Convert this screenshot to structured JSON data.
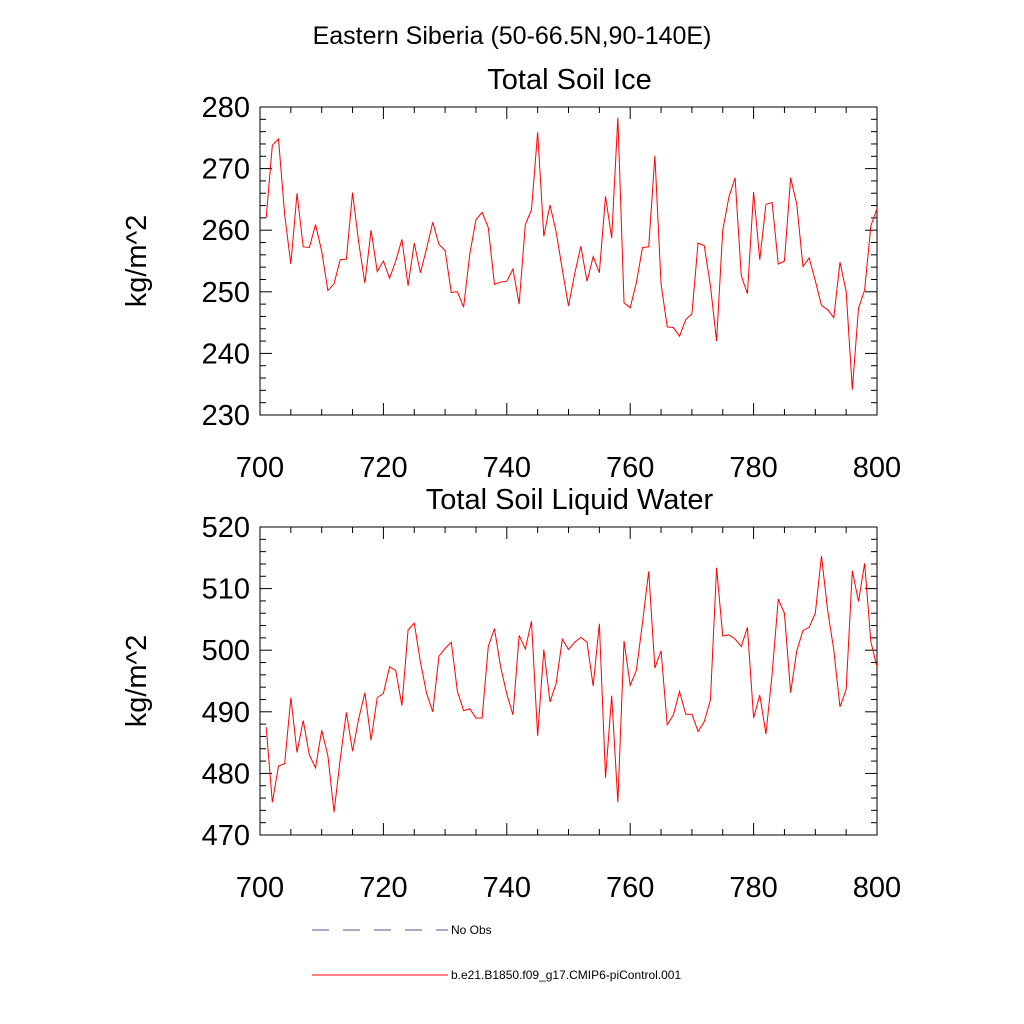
{
  "figure_title": "Eastern Siberia (50-66.5N,90-140E)",
  "legend": {
    "obs_label": "No Obs",
    "model_label": "b.e21.B1850.f09_g17.CMIP6-piControl.001",
    "obs_color": "#4a5a8c",
    "model_color": "#ff0000"
  },
  "chart_data": [
    {
      "type": "line",
      "title": "Total Soil Ice",
      "xlabel": "",
      "ylabel": "kg/m^2",
      "xlim": [
        700,
        800
      ],
      "ylim": [
        230,
        280
      ],
      "xticks": [
        700,
        720,
        740,
        760,
        780,
        800
      ],
      "yticks": [
        230,
        240,
        250,
        260,
        270,
        280
      ],
      "grid": false,
      "series": [
        {
          "name": "b.e21.B1850.f09_g17.CMIP6-piControl.001",
          "color": "#ff0000",
          "x": [
            701,
            702,
            703,
            704,
            705,
            706,
            707,
            708,
            709,
            710,
            711,
            712,
            713,
            714,
            715,
            716,
            717,
            718,
            719,
            720,
            721,
            722,
            723,
            724,
            725,
            726,
            727,
            728,
            729,
            730,
            731,
            732,
            733,
            734,
            735,
            736,
            737,
            738,
            739,
            740,
            741,
            742,
            743,
            744,
            745,
            746,
            747,
            748,
            749,
            750,
            751,
            752,
            753,
            754,
            755,
            756,
            757,
            758,
            759,
            760,
            761,
            762,
            763,
            764,
            765,
            766,
            767,
            768,
            769,
            770,
            771,
            772,
            773,
            774,
            775,
            776,
            777,
            778,
            779,
            780,
            781,
            782,
            783,
            784,
            785,
            786,
            787,
            788,
            789,
            790,
            791,
            792,
            793,
            794,
            795,
            796,
            797,
            798,
            799,
            800
          ],
          "values": [
            262,
            273.8,
            274.8,
            262.5,
            254.5,
            266,
            257.3,
            257.2,
            260.9,
            256.6,
            250.2,
            251.3,
            255.2,
            255.3,
            266.1,
            258,
            251.4,
            260,
            253.3,
            255,
            252.2,
            255,
            258.5,
            251,
            257.9,
            253.1,
            257,
            261.3,
            257.7,
            256.7,
            249.9,
            250,
            247.5,
            256.1,
            261.7,
            262.9,
            260.4,
            251.2,
            251.6,
            251.7,
            253.7,
            248,
            260.9,
            263.3,
            275.9,
            259,
            264.1,
            259.7,
            253.6,
            247.7,
            252.9,
            257.4,
            251.7,
            255.7,
            253.1,
            265.5,
            258.7,
            278.3,
            248.2,
            247.4,
            251.5,
            257.2,
            257.3,
            272.1,
            251.3,
            244.3,
            244.2,
            242.8,
            245.5,
            246.4,
            257.9,
            257.5,
            251,
            242,
            260,
            265.4,
            268.5,
            252.6,
            249.7,
            266.2,
            255.2,
            264.2,
            264.5,
            254.5,
            255,
            268.5,
            264.2,
            254.1,
            255.5,
            251.8,
            247.8,
            247.1,
            245.8,
            254.8,
            250.1,
            234.1,
            247.3,
            250.3,
            260.7,
            263.5
          ]
        }
      ]
    },
    {
      "type": "line",
      "title": "Total Soil Liquid Water",
      "xlabel": "",
      "ylabel": "kg/m^2",
      "xlim": [
        700,
        800
      ],
      "ylim": [
        470,
        520
      ],
      "xticks": [
        700,
        720,
        740,
        760,
        780,
        800
      ],
      "yticks": [
        470,
        480,
        490,
        500,
        510,
        520
      ],
      "grid": false,
      "series": [
        {
          "name": "b.e21.B1850.f09_g17.CMIP6-piControl.001",
          "color": "#ff0000",
          "x": [
            701,
            702,
            703,
            704,
            705,
            706,
            707,
            708,
            709,
            710,
            711,
            712,
            713,
            714,
            715,
            716,
            717,
            718,
            719,
            720,
            721,
            722,
            723,
            724,
            725,
            726,
            727,
            728,
            729,
            730,
            731,
            732,
            733,
            734,
            735,
            736,
            737,
            738,
            739,
            740,
            741,
            742,
            743,
            744,
            745,
            746,
            747,
            748,
            749,
            750,
            751,
            752,
            753,
            754,
            755,
            756,
            757,
            758,
            759,
            760,
            761,
            762,
            763,
            764,
            765,
            766,
            767,
            768,
            769,
            770,
            771,
            772,
            773,
            774,
            775,
            776,
            777,
            778,
            779,
            780,
            781,
            782,
            783,
            784,
            785,
            786,
            787,
            788,
            789,
            790,
            791,
            792,
            793,
            794,
            795,
            796,
            797,
            798,
            799,
            800
          ],
          "values": [
            487.5,
            475.3,
            481.2,
            481.6,
            492.3,
            483.4,
            488.6,
            483,
            480.9,
            487,
            482.9,
            473.7,
            482.3,
            489.9,
            483.6,
            488.9,
            493.1,
            485.4,
            492.3,
            493,
            497.3,
            496.7,
            491,
            503.3,
            504.4,
            498.1,
            493,
            490,
            499,
            500.3,
            501.3,
            493.3,
            490.2,
            490.5,
            489,
            489,
            500.6,
            503.5,
            497.3,
            492.9,
            489.5,
            502.4,
            500.2,
            504.7,
            486.1,
            500.1,
            491.6,
            494.6,
            501.8,
            500.1,
            501.3,
            502.1,
            501.3,
            494.2,
            504.3,
            479.3,
            492.6,
            475.3,
            501.5,
            494.3,
            496.7,
            504.5,
            512.8,
            497.1,
            499.9,
            487.9,
            489.5,
            493.3,
            489.6,
            489.6,
            486.8,
            488.4,
            491.9,
            513.4,
            502.3,
            502.5,
            501.8,
            500.6,
            503.7,
            489,
            492.7,
            486.4,
            496.1,
            508.3,
            506,
            493.1,
            499.9,
            503.2,
            503.7,
            506,
            515.3,
            506.5,
            500,
            490.8,
            493.6,
            512.9,
            507.9,
            514.1,
            501.4,
            497.3
          ]
        }
      ]
    }
  ]
}
